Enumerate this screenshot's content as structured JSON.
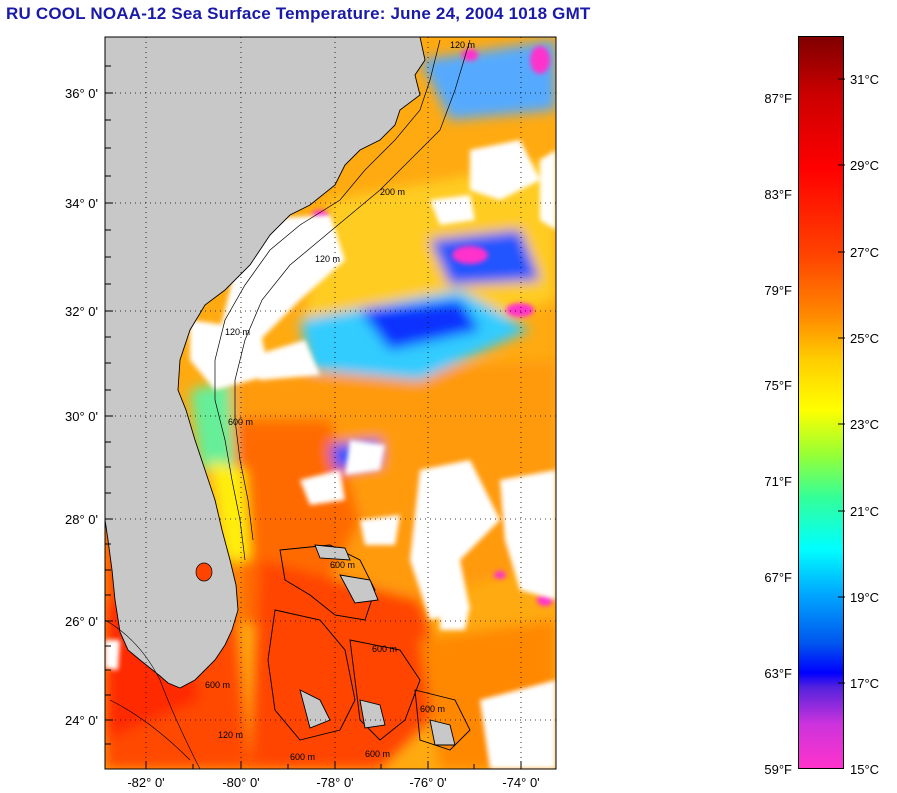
{
  "title": "RU COOL  NOAA-12  Sea Surface Temperature:  June 24, 2004 1018 GMT",
  "map": {
    "lat_labels": [
      "36° 0'",
      "34° 0'",
      "32° 0'",
      "30° 0'",
      "28° 0'",
      "26° 0'",
      "24° 0'"
    ],
    "lon_labels": [
      "-82° 0'",
      "-80° 0'",
      "-78° 0'",
      "-76° 0'",
      "-74° 0'"
    ],
    "contour_labels": [
      "120 m",
      "200 m",
      "120 m",
      "120 m",
      "600 m",
      "600 m",
      "600 m",
      "600 m",
      "600 m",
      "120 m",
      "600 m",
      "600 m"
    ]
  },
  "colorbar": {
    "fahrenheit_labels": [
      "87°F",
      "83°F",
      "79°F",
      "75°F",
      "71°F",
      "67°F",
      "63°F",
      "59°F"
    ],
    "celsius_labels": [
      "31°C",
      "29°C",
      "27°C",
      "25°C",
      "23°C",
      "21°C",
      "19°C",
      "17°C",
      "15°C"
    ]
  },
  "colors": {
    "title": "#1a1aa8",
    "land": "#c8c8c8",
    "cloud": "#ffffff",
    "warm": "#ff5500",
    "hot": "#ff2200",
    "mid": "#ffaa00",
    "cool": "#33ddff",
    "cold": "#2244ff",
    "coldest": "#ff33cc"
  }
}
